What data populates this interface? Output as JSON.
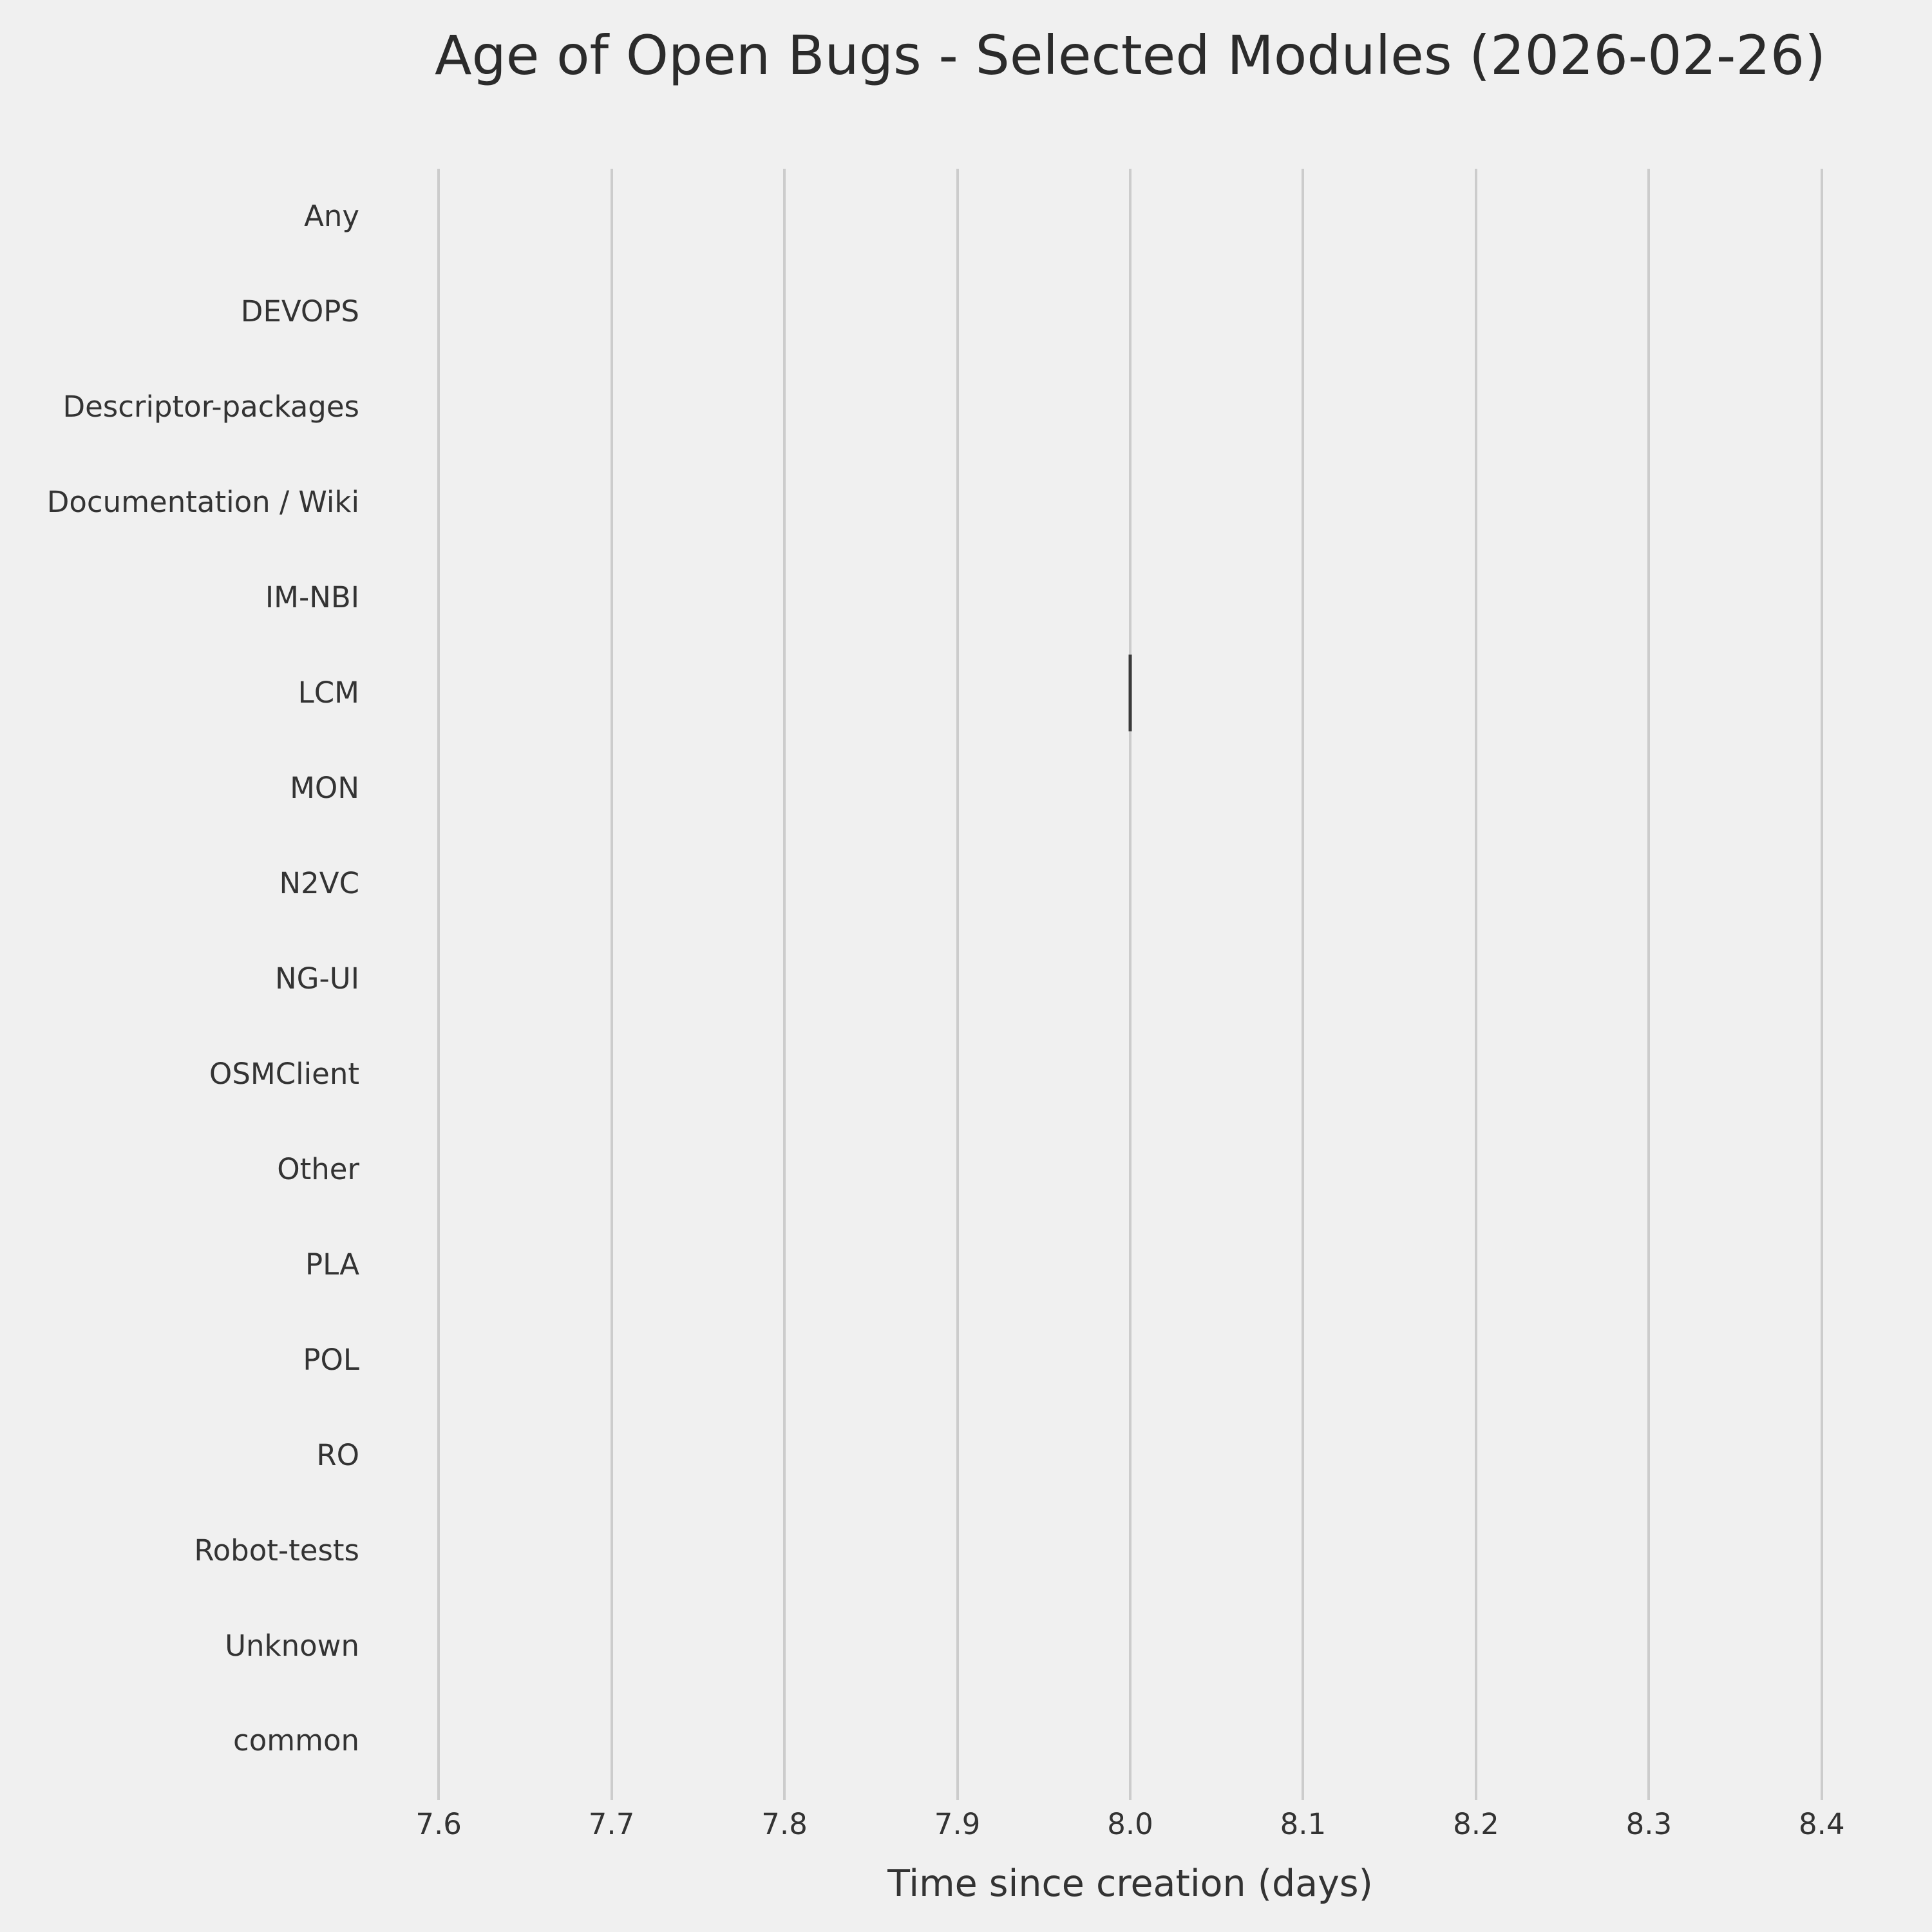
{
  "chart_data": {
    "type": "box",
    "orientation": "horizontal",
    "title": "Age of Open Bugs - Selected Modules (2026-02-26)",
    "xlabel": "Time since creation (days)",
    "categories": [
      "Any",
      "DEVOPS",
      "Descriptor-packages",
      "Documentation / Wiki",
      "IM-NBI",
      "LCM",
      "MON",
      "N2VC",
      "NG-UI",
      "OSMClient",
      "Other",
      "PLA",
      "POL",
      "RO",
      "Robot-tests",
      "Unknown",
      "common"
    ],
    "x_ticks": [
      "7.6",
      "7.7",
      "7.8",
      "7.9",
      "8.0",
      "8.1",
      "8.2",
      "8.3",
      "8.4"
    ],
    "xlim": [
      7.5586,
      8.4414
    ],
    "grid": "vertical-gridlines-only",
    "legend": false,
    "boxes": [
      {
        "category": "LCM",
        "min": 8.0,
        "q1": 8.0,
        "median": 8.0,
        "q3": 8.0,
        "max": 8.0
      }
    ]
  },
  "style": {
    "background": "#f0f0f0",
    "grid_color": "#cccccc",
    "text_color": "#333333",
    "title_color": "#2b2b2b",
    "marker_color": "#3a3a3a"
  }
}
